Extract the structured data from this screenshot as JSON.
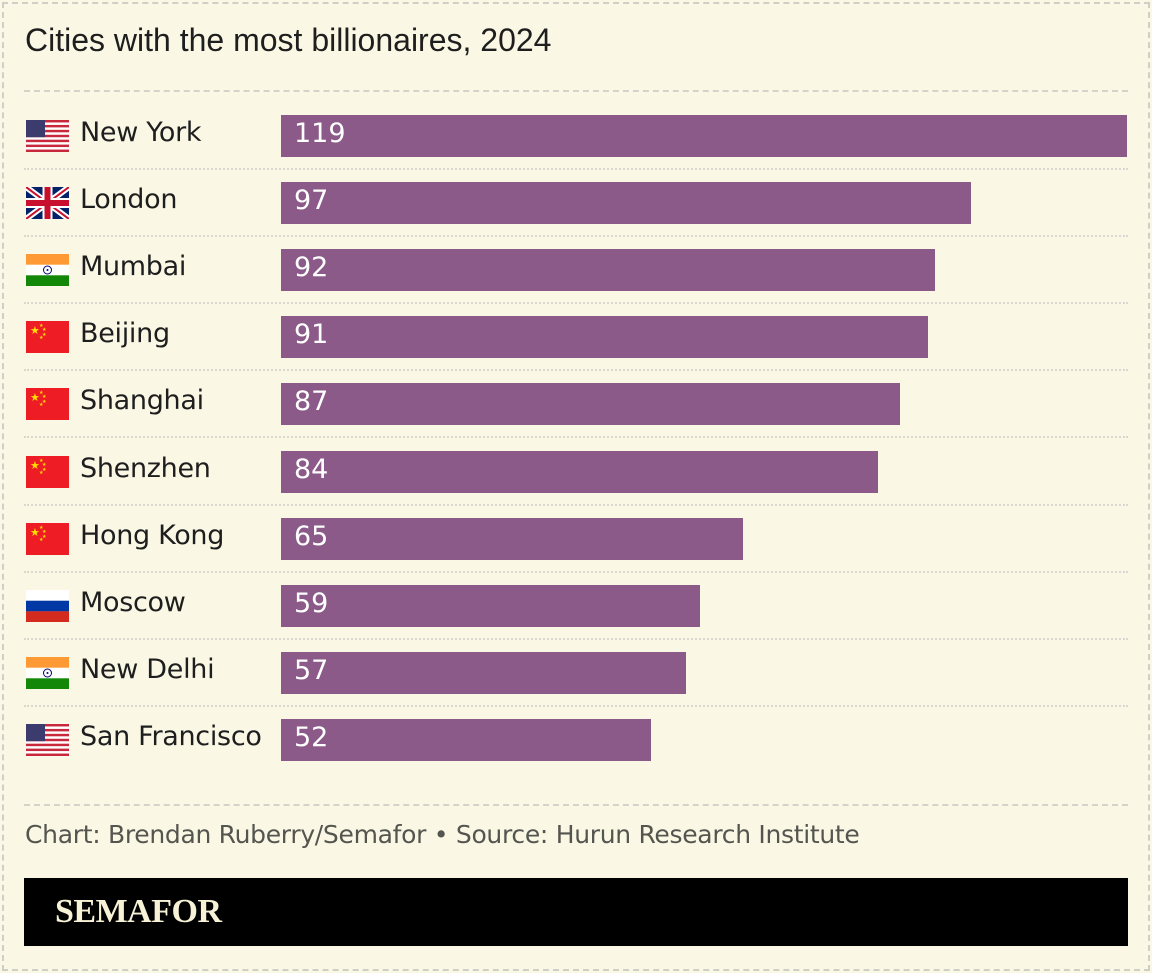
{
  "chart_data": {
    "type": "bar",
    "orientation": "horizontal",
    "title": "Cities with the most billionaires, 2024",
    "categories": [
      "New York",
      "London",
      "Mumbai",
      "Beijing",
      "Shanghai",
      "Shenzhen",
      "Hong Kong",
      "Moscow",
      "New Delhi",
      "San Francisco"
    ],
    "flags": [
      "us",
      "uk",
      "in",
      "cn",
      "cn",
      "cn",
      "cn",
      "ru",
      "in",
      "us"
    ],
    "values": [
      119,
      97,
      92,
      91,
      87,
      84,
      65,
      59,
      57,
      52
    ],
    "xlim": [
      0,
      119
    ],
    "bar_color": "#8b5a89",
    "grid": false,
    "data_labels": true
  },
  "footer": {
    "source": "Chart: Brendan Ruberry/Semafor • Source: Hurun Research Institute",
    "logo": "SEMAFOR"
  },
  "colors": {
    "background": "#faf8e5",
    "bar": "#8b5a89",
    "brand_bg": "#000000",
    "logo": "#f7f1d6"
  }
}
